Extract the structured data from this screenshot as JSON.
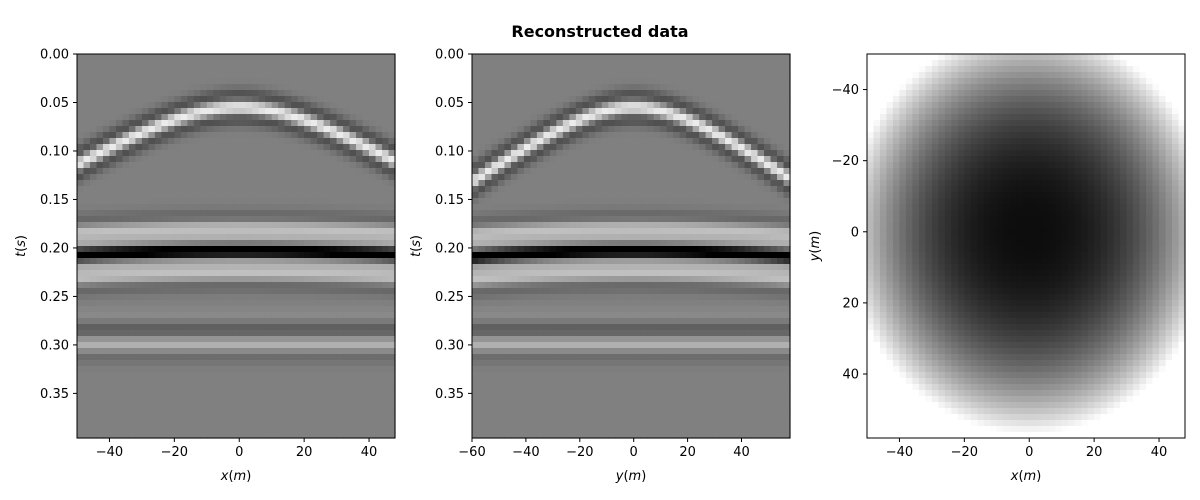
{
  "figure": {
    "title": "Reconstructed data"
  },
  "chart_data": [
    {
      "type": "heatmap",
      "title": "",
      "xlabel": "x(m)",
      "ylabel": "t(s)",
      "xlim": [
        -50,
        48
      ],
      "ylim": [
        0.396,
        0.0
      ],
      "xticks": [
        -40,
        -20,
        0,
        20,
        40
      ],
      "yticks": [
        0.0,
        0.05,
        0.1,
        0.15,
        0.2,
        0.25,
        0.3,
        0.35
      ],
      "xtick_labels": [
        "−40",
        "−20",
        "0",
        "20",
        "40"
      ],
      "ytick_labels": [
        "0.00",
        "0.05",
        "0.10",
        "0.15",
        "0.20",
        "0.25",
        "0.30",
        "0.35"
      ],
      "colormap": "gray",
      "events": [
        {
          "kind": "hyperbolic",
          "t0": 0.055,
          "velocity": 500,
          "polarity": "positive"
        },
        {
          "kind": "hyperbolic",
          "t0": 0.203,
          "velocity": 1200,
          "polarity": "negative-main"
        },
        {
          "kind": "flat",
          "t0": 0.3,
          "polarity": "weak"
        }
      ]
    },
    {
      "type": "heatmap",
      "title": "",
      "xlabel": "y(m)",
      "ylabel": "t(s)",
      "xlim": [
        -60,
        58
      ],
      "ylim": [
        0.396,
        0.0
      ],
      "xticks": [
        -60,
        -40,
        -20,
        0,
        20,
        40
      ],
      "yticks": [
        0.0,
        0.05,
        0.1,
        0.15,
        0.2,
        0.25,
        0.3,
        0.35
      ],
      "xtick_labels": [
        "−60",
        "−40",
        "−20",
        "0",
        "20",
        "40"
      ],
      "ytick_labels": [
        "0.00",
        "0.05",
        "0.10",
        "0.15",
        "0.20",
        "0.25",
        "0.30",
        "0.35"
      ],
      "colormap": "gray",
      "events": [
        {
          "kind": "hyperbolic",
          "t0": 0.055,
          "velocity": 500,
          "polarity": "positive"
        },
        {
          "kind": "hyperbolic",
          "t0": 0.203,
          "velocity": 1200,
          "polarity": "negative-main"
        },
        {
          "kind": "flat",
          "t0": 0.3,
          "polarity": "weak"
        }
      ]
    },
    {
      "type": "heatmap",
      "title": "",
      "xlabel": "x(m)",
      "ylabel": "y(m)",
      "xlim": [
        -50,
        48
      ],
      "ylim": [
        58,
        -50
      ],
      "xticks": [
        -40,
        -20,
        0,
        20,
        40
      ],
      "yticks": [
        -40,
        -20,
        0,
        20,
        40
      ],
      "xtick_labels": [
        "−40",
        "−20",
        "0",
        "20",
        "40"
      ],
      "ytick_labels": [
        "−40",
        "−20",
        "0",
        "20",
        "40"
      ],
      "colormap": "gray",
      "events": [
        {
          "kind": "radial",
          "center": [
            0,
            0
          ],
          "radius": 50
        }
      ]
    }
  ]
}
